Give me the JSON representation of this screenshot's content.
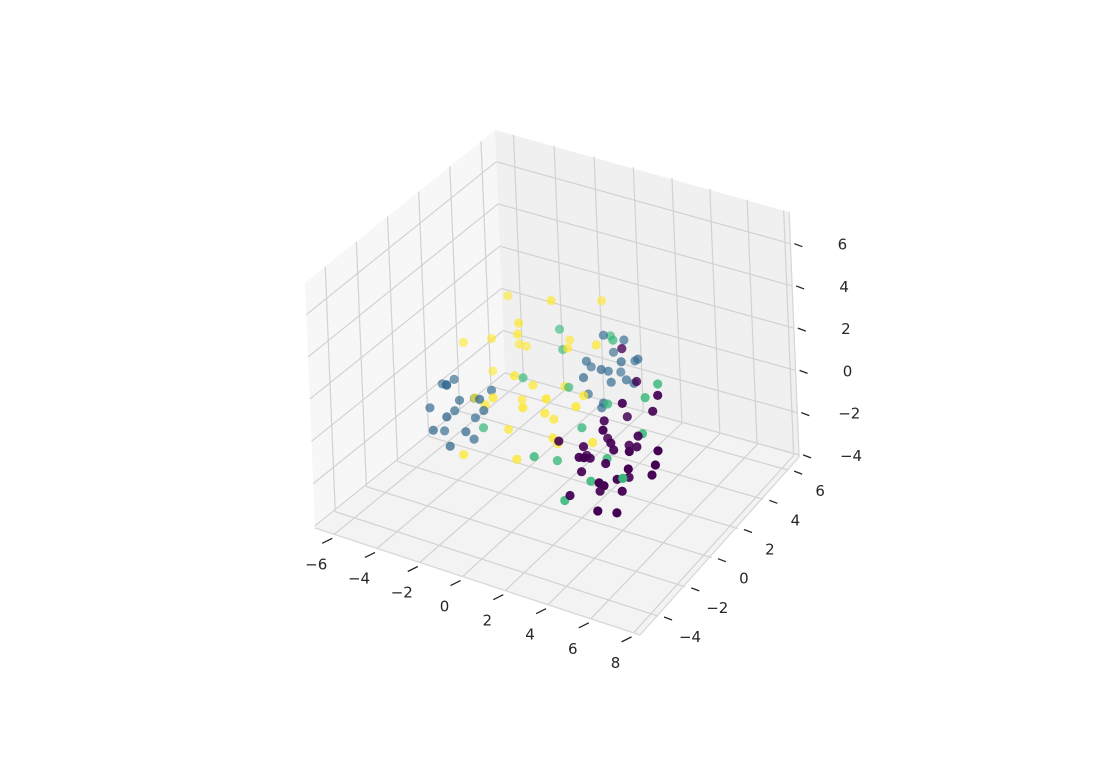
{
  "chart_data": {
    "type": "scatter",
    "projection": "3d",
    "title": "",
    "xlabel": "",
    "ylabel": "",
    "zlabel": "",
    "xlim": [
      -6.9,
      8.3
    ],
    "ylim": [
      -5.3,
      6.9
    ],
    "zlim": [
      -4.1,
      7.5
    ],
    "x_ticks": [
      "−6",
      "−4",
      "−2",
      "0",
      "2",
      "4",
      "6",
      "8"
    ],
    "x_tick_values": [
      -6,
      -4,
      -2,
      0,
      2,
      4,
      6,
      8
    ],
    "y_ticks": [
      "−4",
      "−2",
      "0",
      "2",
      "4",
      "6"
    ],
    "y_tick_values": [
      -4,
      -2,
      0,
      2,
      4,
      6
    ],
    "z_ticks": [
      "−4",
      "−2",
      "0",
      "2",
      "4",
      "6"
    ],
    "z_tick_values": [
      -4,
      -2,
      0,
      2,
      4,
      6
    ],
    "grid": true,
    "colormap": "viridis",
    "series": [
      {
        "color": "#440154",
        "points": [
          [
            4.2,
            -0.8,
            0.3
          ],
          [
            3.1,
            -1.5,
            -0.6
          ],
          [
            5.0,
            -0.2,
            0.8
          ],
          [
            4.6,
            -2.1,
            -0.4
          ],
          [
            3.5,
            -0.4,
            1.2
          ],
          [
            4.9,
            -1.3,
            -1.1
          ],
          [
            2.8,
            -0.9,
            0.1
          ],
          [
            4.1,
            0.4,
            -0.3
          ],
          [
            5.6,
            -1.8,
            0.5
          ],
          [
            3.9,
            -2.4,
            0.9
          ],
          [
            4.4,
            -0.1,
            -1.4
          ],
          [
            3.3,
            -1.9,
            0.4
          ],
          [
            5.2,
            0.6,
            1.5
          ],
          [
            4.0,
            -1.1,
            -0.2
          ],
          [
            2.5,
            -0.3,
            -0.8
          ],
          [
            4.8,
            -2.7,
            0.2
          ],
          [
            3.7,
            0.9,
            0.6
          ],
          [
            5.9,
            -0.6,
            -0.5
          ],
          [
            4.3,
            -1.6,
            1.8
          ],
          [
            3.0,
            -2.2,
            -1.3
          ],
          [
            4.7,
            0.1,
            0.0
          ],
          [
            3.6,
            -1.0,
            -1.7
          ],
          [
            5.4,
            -1.4,
            1.0
          ],
          [
            4.5,
            -0.5,
            2.4
          ],
          [
            2.2,
            -1.7,
            0.7
          ],
          [
            6.3,
            -0.9,
            0.3
          ],
          [
            3.8,
            1.5,
            1.9
          ],
          [
            4.9,
            -3.0,
            -0.9
          ],
          [
            3.2,
            0.2,
            -0.1
          ],
          [
            5.1,
            -2.0,
            -1.6
          ],
          [
            4.0,
            -0.7,
            0.5
          ],
          [
            4.6,
            -1.2,
            -0.7
          ],
          [
            3.4,
            -1.3,
            0.0
          ],
          [
            5.7,
            0.3,
            2.6
          ],
          [
            6.6,
            -1.1,
            1.2
          ],
          [
            2.9,
            1.8,
            3.0
          ]
        ]
      },
      {
        "color": "#31688e",
        "points": [
          [
            -3.2,
            -0.8,
            0.4
          ],
          [
            -2.5,
            -1.4,
            -0.5
          ],
          [
            -3.8,
            -0.3,
            0.9
          ],
          [
            -2.9,
            -1.9,
            -1.0
          ],
          [
            -3.5,
            -1.2,
            1.3
          ],
          [
            -2.2,
            -0.6,
            0.1
          ],
          [
            -3.0,
            -0.1,
            -0.8
          ],
          [
            -4.1,
            -1.5,
            0.2
          ],
          [
            -2.7,
            -2.3,
            0.7
          ],
          [
            -3.4,
            0.4,
            -0.3
          ],
          [
            -2.0,
            -1.1,
            1.0
          ],
          [
            -3.9,
            -0.9,
            -1.2
          ],
          [
            -3.1,
            -1.7,
            1.7
          ],
          [
            -2.4,
            0.2,
            0.5
          ],
          [
            -3.6,
            -2.0,
            -0.4
          ],
          [
            -2.8,
            -0.5,
            -1.5
          ],
          [
            -4.3,
            -0.4,
            0.6
          ],
          [
            -3.3,
            -1.0,
            0.0
          ],
          [
            1.2,
            3.1,
            0.6
          ],
          [
            0.5,
            2.6,
            1.2
          ],
          [
            1.8,
            3.5,
            0.1
          ],
          [
            0.9,
            3.9,
            0.9
          ],
          [
            1.5,
            2.3,
            -0.3
          ],
          [
            0.2,
            3.3,
            0.4
          ],
          [
            2.1,
            2.8,
            1.5
          ],
          [
            1.0,
            4.2,
            -0.2
          ],
          [
            0.7,
            2.1,
            0.8
          ],
          [
            1.6,
            3.7,
            1.8
          ],
          [
            2.4,
            3.2,
            0.3
          ],
          [
            0.3,
            2.9,
            -0.6
          ],
          [
            1.3,
            2.5,
            1.1
          ],
          [
            1.9,
            4.0,
            0.7
          ],
          [
            0.8,
            3.4,
            2.0
          ],
          [
            1.1,
            2.7,
            -0.9
          ],
          [
            2.2,
            3.8,
            1.0
          ],
          [
            1.4,
            3.0,
            0.2
          ]
        ]
      },
      {
        "color": "#35b779",
        "points": [
          [
            1.5,
            0.8,
            -0.5
          ],
          [
            -0.5,
            2.4,
            1.6
          ],
          [
            2.3,
            1.5,
            0.4
          ],
          [
            0.3,
            -0.8,
            -1.2
          ],
          [
            3.9,
            1.9,
            0.9
          ],
          [
            -1.6,
            1.2,
            0.7
          ],
          [
            1.0,
            3.6,
            1.9
          ],
          [
            2.8,
            -0.5,
            -1.8
          ],
          [
            0.6,
            0.3,
            -2.0
          ],
          [
            4.5,
            0.8,
            0.1
          ],
          [
            -2.4,
            -0.4,
            -0.9
          ],
          [
            1.8,
            2.7,
            2.5
          ],
          [
            3.2,
            0.1,
            -1.0
          ],
          [
            5.1,
            -1.5,
            -0.3
          ],
          [
            0.1,
            1.9,
            0.3
          ],
          [
            2.0,
            -1.2,
            -2.5
          ],
          [
            -1.0,
            2.9,
            2.1
          ],
          [
            4.2,
            2.4,
            1.3
          ]
        ]
      },
      {
        "color": "#fde725",
        "points": [
          [
            -1.2,
            1.3,
            0.4
          ],
          [
            0.5,
            0.2,
            -0.9
          ],
          [
            -2.4,
            2.1,
            1.5
          ],
          [
            -0.3,
            -0.6,
            0.8
          ],
          [
            -1.8,
            0.4,
            -1.3
          ],
          [
            0.9,
            1.8,
            0.2
          ],
          [
            -2.9,
            1.0,
            2.3
          ],
          [
            -0.7,
            2.7,
            -0.4
          ],
          [
            -1.5,
            -0.9,
            1.1
          ],
          [
            0.2,
            0.9,
            -1.7
          ],
          [
            -3.3,
            0.3,
            -0.2
          ],
          [
            -0.1,
            2.2,
            1.9
          ],
          [
            -2.0,
            1.6,
            -0.7
          ],
          [
            1.4,
            0.6,
            0.6
          ],
          [
            -1.0,
            -0.2,
            -2.1
          ],
          [
            -2.6,
            2.8,
            0.9
          ],
          [
            0.7,
            -0.4,
            1.4
          ],
          [
            -1.7,
            1.1,
            2.8
          ],
          [
            -0.4,
            1.5,
            -1.1
          ],
          [
            -3.6,
            1.9,
            0.0
          ],
          [
            1.1,
            2.5,
            2.2
          ],
          [
            -2.2,
            -0.5,
            0.3
          ],
          [
            -0.9,
            3.4,
            1.3
          ],
          [
            0.0,
            0.4,
            0.0
          ],
          [
            -1.4,
            0.8,
            3.6
          ],
          [
            -4.2,
            0.9,
            1.8
          ],
          [
            0.4,
            3.9,
            3.2
          ],
          [
            -2.8,
            -1.2,
            -1.8
          ],
          [
            -0.6,
            1.9,
            4.2
          ],
          [
            1.7,
            1.2,
            -1.4
          ],
          [
            -1.1,
            0.0,
            1.7
          ],
          [
            -3.1,
            2.4,
            3.4
          ]
        ]
      }
    ]
  }
}
